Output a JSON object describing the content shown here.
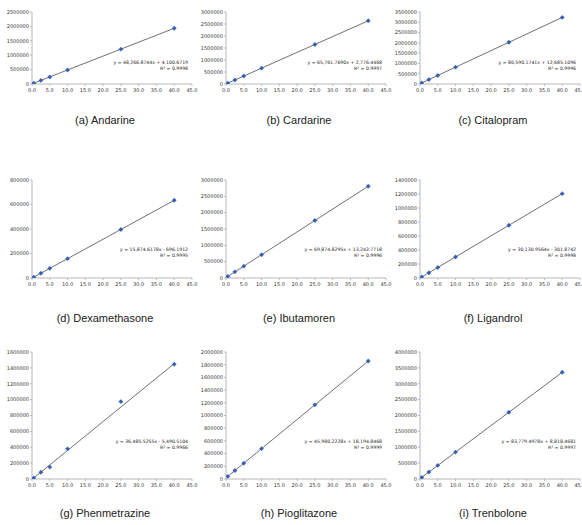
{
  "chart_data": [
    {
      "type": "scatter",
      "title": "(a) Andarine",
      "marker": "diamond",
      "color": "#2f5fb3",
      "x": [
        0.5,
        2.5,
        5,
        10,
        25,
        40
      ],
      "values": [
        28200,
        124800,
        245400,
        486800,
        1210800,
        1934800
      ],
      "trendline": {
        "slope": 48266.8744,
        "intercept": 4100.6719
      },
      "equation": "y = 48,266.8744x + 4,100.6719",
      "r_squared": "R² = 0.9998",
      "xlim": [
        0,
        45
      ],
      "xticks": [
        {
          "value": 0,
          "label": "0.0"
        },
        {
          "value": 5,
          "label": "5.0"
        },
        {
          "value": 10,
          "label": "10.0"
        },
        {
          "value": 15,
          "label": "15.0"
        },
        {
          "value": 20,
          "label": "20.0"
        },
        {
          "value": 25,
          "label": "25.0"
        },
        {
          "value": 30,
          "label": "30.0"
        },
        {
          "value": 35,
          "label": "35.0"
        },
        {
          "value": 40,
          "label": "40.0"
        },
        {
          "value": 45,
          "label": "45.0"
        }
      ],
      "ylim": [
        0,
        2500000
      ],
      "yticks": [
        0,
        500000,
        1000000,
        1500000,
        2000000,
        2500000
      ]
    },
    {
      "type": "scatter",
      "title": "(b) Cardarine",
      "marker": "diamond",
      "color": "#2f5fb3",
      "x": [
        0.5,
        2.5,
        5,
        10,
        25,
        40
      ],
      "values": [
        35700,
        167200,
        331600,
        660400,
        1646800,
        2633300
      ],
      "trendline": {
        "slope": 65761.769,
        "intercept": 2776.4468
      },
      "equation": "y = 65,761.7690x + 2,776.4468",
      "r_squared": "R² = 0.9997",
      "xlim": [
        0,
        45
      ],
      "xticks": [
        {
          "value": 0,
          "label": "0.0"
        },
        {
          "value": 5,
          "label": "5.0"
        },
        {
          "value": 10,
          "label": "10.0"
        },
        {
          "value": 15,
          "label": "15.0"
        },
        {
          "value": 20,
          "label": "20.0"
        },
        {
          "value": 25,
          "label": "25.0"
        },
        {
          "value": 30,
          "label": "30.0"
        },
        {
          "value": 35,
          "label": "35.0"
        },
        {
          "value": 40,
          "label": "40.0"
        },
        {
          "value": 45,
          "label": "45.0"
        }
      ],
      "ylim": [
        0,
        3000000
      ],
      "yticks": [
        0,
        500000,
        1000000,
        1500000,
        2000000,
        2500000,
        3000000
      ]
    },
    {
      "type": "scatter",
      "title": "(c) Citalopram",
      "marker": "diamond",
      "color": "#2f5fb3",
      "x": [
        0.5,
        2.5,
        5,
        10,
        25,
        40
      ],
      "values": [
        53000,
        214200,
        415600,
        818600,
        2027400,
        3236300
      ],
      "trendline": {
        "slope": 80590.1741,
        "intercept": 12685.1096
      },
      "equation": "y = 80,590.1741x + 12,685.1096",
      "r_squared": "R² = 0.9996",
      "xlim": [
        0,
        45
      ],
      "xticks": [
        {
          "value": 0,
          "label": "0.0"
        },
        {
          "value": 5,
          "label": "5.0"
        },
        {
          "value": 10,
          "label": "10.0"
        },
        {
          "value": 15,
          "label": "15.0"
        },
        {
          "value": 20,
          "label": "20.0"
        },
        {
          "value": 25,
          "label": "25.0"
        },
        {
          "value": 30,
          "label": "30.0"
        },
        {
          "value": 35,
          "label": "35.0"
        },
        {
          "value": 40,
          "label": "40.0"
        },
        {
          "value": 45,
          "label": "45.0"
        }
      ],
      "ylim": [
        0,
        3500000
      ],
      "yticks": [
        0,
        500000,
        1000000,
        1500000,
        2000000,
        2500000,
        3000000,
        3500000
      ]
    },
    {
      "type": "scatter",
      "title": "(d) Dexamethasone",
      "marker": "diamond",
      "color": "#2f5fb3",
      "x": [
        0.5,
        2.5,
        5,
        10,
        25,
        40
      ],
      "values": [
        7200,
        39000,
        78700,
        158000,
        396200,
        634300
      ],
      "trendline": {
        "slope": 15874.6178,
        "intercept": -696.1912
      },
      "equation": "y = 15,874.6178x - 696.1912",
      "r_squared": "R² = 0.9995",
      "xlim": [
        0,
        45
      ],
      "xticks": [
        {
          "value": 0,
          "label": "0.0"
        },
        {
          "value": 5,
          "label": "5.0"
        },
        {
          "value": 10,
          "label": "10.0"
        },
        {
          "value": 15,
          "label": "15.0"
        },
        {
          "value": 20,
          "label": "20.0"
        },
        {
          "value": 25,
          "label": "25.0"
        },
        {
          "value": 30,
          "label": "30.0"
        },
        {
          "value": 35,
          "label": "35.0"
        },
        {
          "value": 40,
          "label": "40.0"
        },
        {
          "value": 45,
          "label": "45.0"
        }
      ],
      "ylim": [
        0,
        800000
      ],
      "yticks": [
        0,
        200000,
        400000,
        600000,
        800000
      ]
    },
    {
      "type": "scatter",
      "title": "(e) Ibutamoren",
      "marker": "diamond",
      "color": "#2f5fb3",
      "x": [
        0.5,
        2.5,
        5,
        10,
        25,
        40
      ],
      "values": [
        48200,
        187900,
        362600,
        712000,
        1760100,
        2808200
      ],
      "trendline": {
        "slope": 69874.8295,
        "intercept": 13242.7718
      },
      "equation": "y = 69,874.8295x + 13,242.7718",
      "r_squared": "R² = 0.9996",
      "xlim": [
        0,
        45
      ],
      "xticks": [
        {
          "value": 0,
          "label": "0.0"
        },
        {
          "value": 5,
          "label": "5.0"
        },
        {
          "value": 10,
          "label": "10.0"
        },
        {
          "value": 15,
          "label": "15.0"
        },
        {
          "value": 20,
          "label": "20.0"
        },
        {
          "value": 25,
          "label": "25.0"
        },
        {
          "value": 30,
          "label": "30.0"
        },
        {
          "value": 35,
          "label": "35.0"
        },
        {
          "value": 40,
          "label": "40.0"
        },
        {
          "value": 45,
          "label": "45.0"
        }
      ],
      "ylim": [
        0,
        3000000
      ],
      "yticks": [
        0,
        500000,
        1000000,
        1500000,
        2000000,
        2500000,
        3000000
      ]
    },
    {
      "type": "scatter",
      "title": "(f) Ligandrol",
      "marker": "diamond",
      "color": "#2f5fb3",
      "x": [
        0.5,
        2.5,
        5,
        10,
        25,
        40
      ],
      "values": [
        14800,
        75000,
        150400,
        301000,
        753000,
        1204900
      ],
      "trendline": {
        "slope": 30130.9564,
        "intercept": -301.8742
      },
      "equation": "y = 30,130.9564x - 301.8742",
      "r_squared": "R² = 0.9998",
      "xlim": [
        0,
        45
      ],
      "xticks": [
        {
          "value": 0,
          "label": "0.0"
        },
        {
          "value": 5,
          "label": "5.0"
        },
        {
          "value": 10,
          "label": "10.0"
        },
        {
          "value": 15,
          "label": "15.0"
        },
        {
          "value": 20,
          "label": "20.0"
        },
        {
          "value": 25,
          "label": "25.0"
        },
        {
          "value": 30,
          "label": "30.0"
        },
        {
          "value": 35,
          "label": "35.0"
        },
        {
          "value": 40,
          "label": "40.0"
        },
        {
          "value": 45,
          "label": "45.0"
        }
      ],
      "ylim": [
        0,
        1400000
      ],
      "yticks": [
        0,
        200000,
        400000,
        600000,
        800000,
        1000000,
        1200000,
        1400000
      ]
    },
    {
      "type": "scatter",
      "title": "(g) Phenmetrazine",
      "marker": "diamond",
      "color": "#2f5fb3",
      "x": [
        0.5,
        2.5,
        5,
        10,
        25,
        40
      ],
      "values": [
        12700,
        85700,
        150000,
        380000,
        975000,
        1445000
      ],
      "trendline": {
        "slope": 36485.5255,
        "intercept": -5490.5104
      },
      "equation": "y = 36,485.5255x - 5,490.5104",
      "r_squared": "R² = 0.9966",
      "xlim": [
        0,
        45
      ],
      "xticks": [
        {
          "value": 0,
          "label": "0.0"
        },
        {
          "value": 5,
          "label": "5.0"
        },
        {
          "value": 10,
          "label": "10.0"
        },
        {
          "value": 15,
          "label": "15.0"
        },
        {
          "value": 20,
          "label": "20.0"
        },
        {
          "value": 25,
          "label": "25.0"
        },
        {
          "value": 30,
          "label": "30.0"
        },
        {
          "value": 35,
          "label": "35.0"
        },
        {
          "value": 40,
          "label": "40.0"
        },
        {
          "value": 45,
          "label": "45.0"
        }
      ],
      "ylim": [
        0,
        1600000
      ],
      "yticks": [
        0,
        200000,
        400000,
        600000,
        800000,
        1000000,
        1200000,
        1400000,
        1600000
      ]
    },
    {
      "type": "scatter",
      "title": "(h) Pioglitazone",
      "marker": "diamond",
      "color": "#2f5fb3",
      "x": [
        0.5,
        2.5,
        5,
        10,
        25,
        40
      ],
      "values": [
        41200,
        133100,
        248100,
        478000,
        1167700,
        1857400
      ],
      "trendline": {
        "slope": 45980.2228,
        "intercept": 18194.8468
      },
      "equation": "y = 45,980.2228x + 18,194.8468",
      "r_squared": "R² = 0.9999",
      "xlim": [
        0,
        45
      ],
      "xticks": [
        {
          "value": 0,
          "label": "0.0"
        },
        {
          "value": 5,
          "label": "5.0"
        },
        {
          "value": 10,
          "label": "10.0"
        },
        {
          "value": 15,
          "label": "15.0"
        },
        {
          "value": 20,
          "label": "20.0"
        },
        {
          "value": 25,
          "label": "25.0"
        },
        {
          "value": 30,
          "label": "30.0"
        },
        {
          "value": 35,
          "label": "35.0"
        },
        {
          "value": 40,
          "label": "40.0"
        },
        {
          "value": 45,
          "label": "45.0"
        }
      ],
      "ylim": [
        0,
        2000000
      ],
      "yticks": [
        0,
        200000,
        400000,
        600000,
        800000,
        1000000,
        1200000,
        1400000,
        1600000,
        1800000,
        2000000
      ]
    },
    {
      "type": "scatter",
      "title": "(i) Trenbolone",
      "marker": "diamond",
      "color": "#2f5fb3",
      "x": [
        0.5,
        2.5,
        5,
        10,
        25,
        40
      ],
      "values": [
        50700,
        218300,
        427700,
        846600,
        2103300,
        3360000
      ],
      "trendline": {
        "slope": 83779.4978,
        "intercept": 8818.4681
      },
      "equation": "y = 83,779.4978x + 8,818.4681",
      "r_squared": "R² = 0.9997",
      "xlim": [
        0,
        45
      ],
      "xticks": [
        {
          "value": 0,
          "label": "0.0"
        },
        {
          "value": 5,
          "label": "5.0"
        },
        {
          "value": 10,
          "label": "10.0"
        },
        {
          "value": 15,
          "label": "15.0"
        },
        {
          "value": 20,
          "label": "20.0"
        },
        {
          "value": 25,
          "label": "25.0"
        },
        {
          "value": 30,
          "label": "30.0"
        },
        {
          "value": 35,
          "label": "35.0"
        },
        {
          "value": 40,
          "label": "40.0"
        },
        {
          "value": 45,
          "label": "45.0"
        }
      ],
      "ylim": [
        0,
        4000000
      ],
      "yticks": [
        0,
        500000,
        1000000,
        1500000,
        2000000,
        2500000,
        3000000,
        3500000,
        4000000
      ]
    }
  ]
}
